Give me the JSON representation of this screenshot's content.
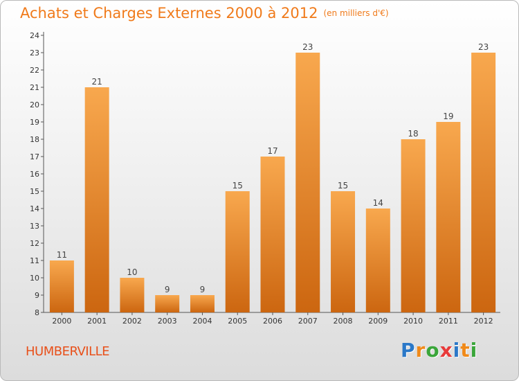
{
  "header": {
    "title": "Achats et Charges Externes 2000 à 2012",
    "subtitle": "(en milliers d'€)"
  },
  "commune": "HUMBERVILLE",
  "logo": {
    "letters": [
      "P",
      "r",
      "o",
      "x",
      "i",
      "t",
      "i"
    ],
    "colors": [
      "#2a78c8",
      "#f08a1a",
      "#3aa63a",
      "#e83a3a",
      "#2a78c8",
      "#f08a1a",
      "#3aa63a"
    ]
  },
  "colors": {
    "bar_light": "#f8a84e",
    "bar_dark": "#cc6610",
    "axis": "#555555"
  },
  "chart_data": {
    "type": "bar",
    "categories": [
      "2000",
      "2001",
      "2002",
      "2003",
      "2004",
      "2005",
      "2006",
      "2007",
      "2008",
      "2009",
      "2010",
      "2011",
      "2012"
    ],
    "values": [
      11,
      21,
      10,
      9,
      9,
      15,
      17,
      23,
      15,
      14,
      18,
      19,
      23
    ],
    "ylim": [
      8,
      24
    ],
    "yticks": [
      8,
      9,
      10,
      11,
      12,
      13,
      14,
      15,
      16,
      17,
      18,
      19,
      20,
      21,
      22,
      23,
      24
    ],
    "grid": false,
    "data_labels": true
  }
}
